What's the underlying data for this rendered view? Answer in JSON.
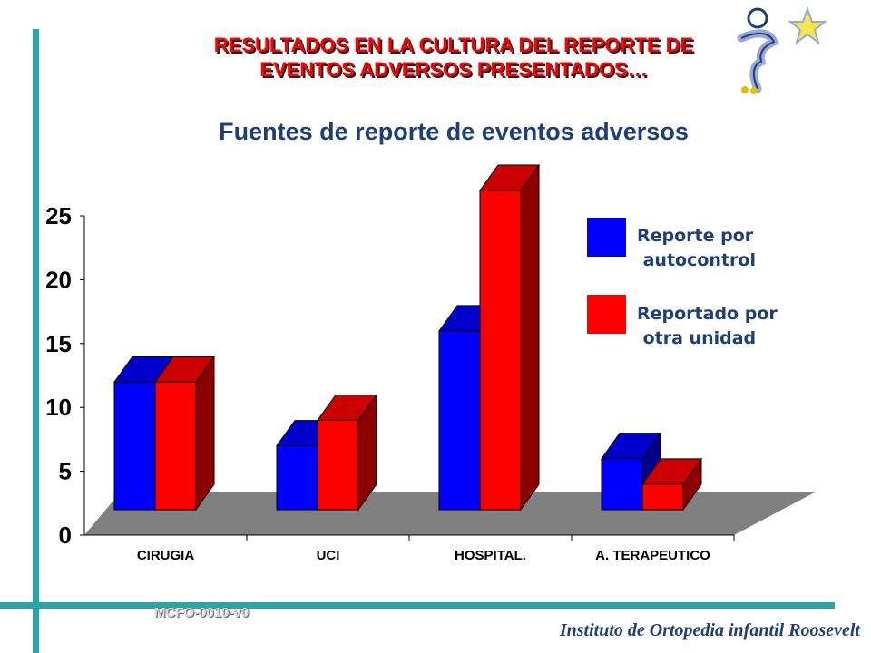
{
  "title_line1": "RESULTADOS  EN LA CULTURA DEL REPORTE DE",
  "title_line2": "EVENTOS ADVERSOS PRESENTADOS…",
  "footer_code": "MCFO-0010-v0",
  "footer_institution": "Instituto de Ortopedia infantil Roosevelt",
  "colors": {
    "accent": "#2aa5a5",
    "title": "#ff0000",
    "subtitle": "#1f3f78",
    "floor": "#808080",
    "blue": "#0000ff",
    "red": "#ff0000"
  },
  "icon": "logo-figure-star-icon",
  "chart_data": {
    "type": "bar",
    "title": "Fuentes de reporte de eventos adversos",
    "categories": [
      "CIRUGIA",
      "UCI",
      "HOSPITAL.",
      "A. TERAPEUTICO"
    ],
    "series": [
      {
        "name": "Reporte por autocontrol",
        "legend_lines": [
          "Reporte por",
          " autocontrol"
        ],
        "color": "#0000ff",
        "values": [
          10,
          5,
          14,
          4
        ]
      },
      {
        "name": "Reportado por otra unidad",
        "legend_lines": [
          "Reportado por",
          " otra unidad"
        ],
        "color": "#ff0000",
        "values": [
          10,
          7,
          25,
          2
        ]
      }
    ],
    "y_ticks": [
      "0",
      "5",
      "10",
      "15",
      "20",
      "25"
    ],
    "ylim": [
      0,
      25
    ],
    "legend_position": "top-right",
    "three_d": true,
    "grid": false
  }
}
